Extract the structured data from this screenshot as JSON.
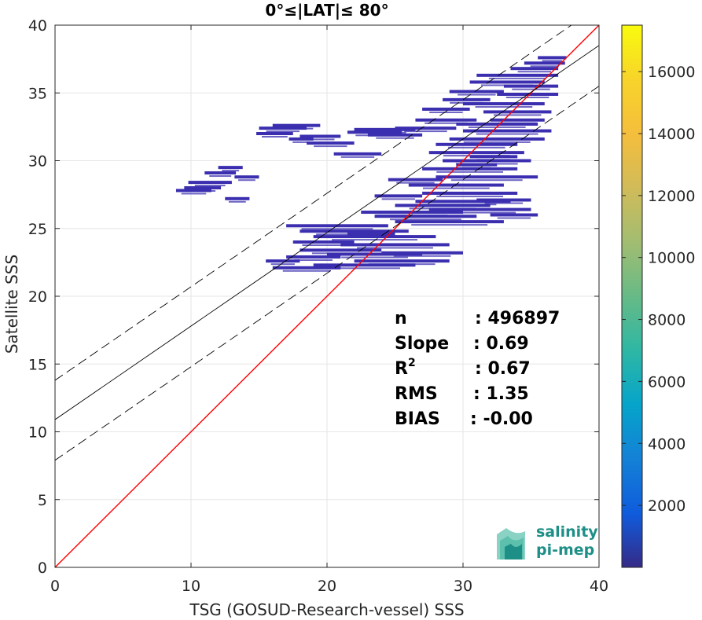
{
  "chart_data": {
    "type": "scatter",
    "title": "0°≤|LAT|≤ 80°",
    "xlabel": "TSG (GOSUD-Research-vessel) SSS",
    "ylabel": "Satellite SSS",
    "xlim": [
      0,
      40
    ],
    "ylim": [
      0,
      40
    ],
    "xticks": [
      "0",
      "10",
      "20",
      "30",
      "40"
    ],
    "yticks": [
      "0",
      "5",
      "10",
      "15",
      "20",
      "25",
      "30",
      "35",
      "40"
    ],
    "grid": true,
    "lines": [
      {
        "role": "one-to-one",
        "color": "#ff0000",
        "style": "solid",
        "slope": 1.0,
        "intercept": 0.0
      },
      {
        "role": "regression",
        "color": "#000000",
        "style": "solid",
        "slope": 0.69,
        "intercept": 10.9
      },
      {
        "role": "regression-upper",
        "color": "#000000",
        "style": "dashed",
        "slope": 0.69,
        "intercept": 13.8
      },
      {
        "role": "regression-lower",
        "color": "#000000",
        "style": "dashed",
        "slope": 0.69,
        "intercept": 7.9
      }
    ],
    "density_point_color": "#3b2fb0",
    "density_segments": [
      [
        8.9,
        11.5,
        27.8
      ],
      [
        9.5,
        12.2,
        28.0
      ],
      [
        9.8,
        13.0,
        28.4
      ],
      [
        11.0,
        13.3,
        29.1
      ],
      [
        12.0,
        13.8,
        29.5
      ],
      [
        12.5,
        14.3,
        27.2
      ],
      [
        13.2,
        15.0,
        28.8
      ],
      [
        14.8,
        17.5,
        32.0
      ],
      [
        15.0,
        18.5,
        32.4
      ],
      [
        16.0,
        19.5,
        32.6
      ],
      [
        17.2,
        19.0,
        31.6
      ],
      [
        18.0,
        21.0,
        31.8
      ],
      [
        18.5,
        22.0,
        31.3
      ],
      [
        20.5,
        24.0,
        30.5
      ],
      [
        21.5,
        25.5,
        32.1
      ],
      [
        22.0,
        26.5,
        32.3
      ],
      [
        23.0,
        27.0,
        31.9
      ],
      [
        25.0,
        29.5,
        32.4
      ],
      [
        26.5,
        31.0,
        33.0
      ],
      [
        27.0,
        30.5,
        33.8
      ],
      [
        28.5,
        32.0,
        34.5
      ],
      [
        29.0,
        33.0,
        35.1
      ],
      [
        30.5,
        36.0,
        35.8
      ],
      [
        31.0,
        37.0,
        36.3
      ],
      [
        33.5,
        37.0,
        36.8
      ],
      [
        34.5,
        37.5,
        37.2
      ],
      [
        35.5,
        37.6,
        37.6
      ],
      [
        30.0,
        36.0,
        34.2
      ],
      [
        31.5,
        36.5,
        33.6
      ],
      [
        32.0,
        36.0,
        33.0
      ],
      [
        29.5,
        35.5,
        32.7
      ],
      [
        28.0,
        34.0,
        31.2
      ],
      [
        27.5,
        34.5,
        30.6
      ],
      [
        28.5,
        35.0,
        30.0
      ],
      [
        27.0,
        34.0,
        29.4
      ],
      [
        28.0,
        35.5,
        28.8
      ],
      [
        26.0,
        33.0,
        28.2
      ],
      [
        27.0,
        34.0,
        27.6
      ],
      [
        26.5,
        33.5,
        27.0
      ],
      [
        25.0,
        32.0,
        26.7
      ],
      [
        27.5,
        35.0,
        26.4
      ],
      [
        22.5,
        30.0,
        26.2
      ],
      [
        23.5,
        31.0,
        25.9
      ],
      [
        25.0,
        33.0,
        25.5
      ],
      [
        17.0,
        24.5,
        25.2
      ],
      [
        18.0,
        26.0,
        24.8
      ],
      [
        19.0,
        28.0,
        24.4
      ],
      [
        17.5,
        22.0,
        24.0
      ],
      [
        21.0,
        29.0,
        23.8
      ],
      [
        18.0,
        24.0,
        23.4
      ],
      [
        17.0,
        21.0,
        22.9
      ],
      [
        20.0,
        27.0,
        23.1
      ],
      [
        15.5,
        18.0,
        22.6
      ],
      [
        19.0,
        26.5,
        22.3
      ],
      [
        16.0,
        21.0,
        22.1
      ],
      [
        22.0,
        29.0,
        22.6
      ],
      [
        24.0,
        30.0,
        23.2
      ],
      [
        21.5,
        25.0,
        24.6
      ],
      [
        29.0,
        36.0,
        31.6
      ],
      [
        30.0,
        36.5,
        32.2
      ],
      [
        32.5,
        37.0,
        34.9
      ],
      [
        33.0,
        37.0,
        35.5
      ],
      [
        30.5,
        34.0,
        30.3
      ],
      [
        29.5,
        32.5,
        29.7
      ],
      [
        23.5,
        27.0,
        27.4
      ],
      [
        24.5,
        28.5,
        28.6
      ],
      [
        31.0,
        35.0,
        27.1
      ],
      [
        32.0,
        35.5,
        26.0
      ]
    ],
    "colorbar": {
      "range": [
        0,
        17500
      ],
      "ticks": [
        "2000",
        "4000",
        "6000",
        "8000",
        "10000",
        "12000",
        "14000",
        "16000"
      ],
      "colormap": "parula"
    },
    "stats": [
      {
        "label": "n",
        "value": ": 496897"
      },
      {
        "label": "Slope",
        "value": ": 0.69"
      },
      {
        "label": "R",
        "sup": "2",
        "value": ": 0.67"
      },
      {
        "label": "RMS",
        "value": ": 1.35"
      },
      {
        "label": "BIAS",
        "value": ": -0.00"
      }
    ]
  },
  "logo": {
    "line1": "salinity",
    "line2": "pi-mep",
    "colors": [
      "#37b6a3",
      "#1d8f87",
      "#8ad2c4",
      "#5cc0ad"
    ]
  }
}
